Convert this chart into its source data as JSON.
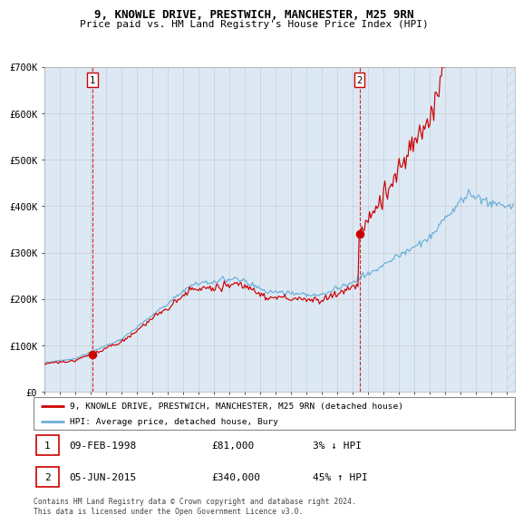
{
  "title1": "9, KNOWLE DRIVE, PRESTWICH, MANCHESTER, M25 9RN",
  "title2": "Price paid vs. HM Land Registry's House Price Index (HPI)",
  "background_color": "#dce9f5",
  "hpi_color": "#6baed6",
  "price_color": "#cc0000",
  "dot_color": "#cc0000",
  "dashed_color": "#cc0000",
  "ylim": [
    0,
    700000
  ],
  "yticks": [
    0,
    100000,
    200000,
    300000,
    400000,
    500000,
    600000,
    700000
  ],
  "ytick_labels": [
    "£0",
    "£100K",
    "£200K",
    "£300K",
    "£400K",
    "£500K",
    "£600K",
    "£700K"
  ],
  "sale1_date": 1998.11,
  "sale1_price": 81000,
  "sale2_date": 2015.43,
  "sale2_price": 340000,
  "legend1": "9, KNOWLE DRIVE, PRESTWICH, MANCHESTER, M25 9RN (detached house)",
  "legend2": "HPI: Average price, detached house, Bury",
  "table_row1": [
    "1",
    "09-FEB-1998",
    "£81,000",
    "3% ↓ HPI"
  ],
  "table_row2": [
    "2",
    "05-JUN-2015",
    "£340,000",
    "45% ↑ HPI"
  ],
  "footnote": "Contains HM Land Registry data © Crown copyright and database right 2024.\nThis data is licensed under the Open Government Licence v3.0.",
  "xmin": 1995.0,
  "xmax": 2025.5,
  "hatch_start": 2025.0
}
